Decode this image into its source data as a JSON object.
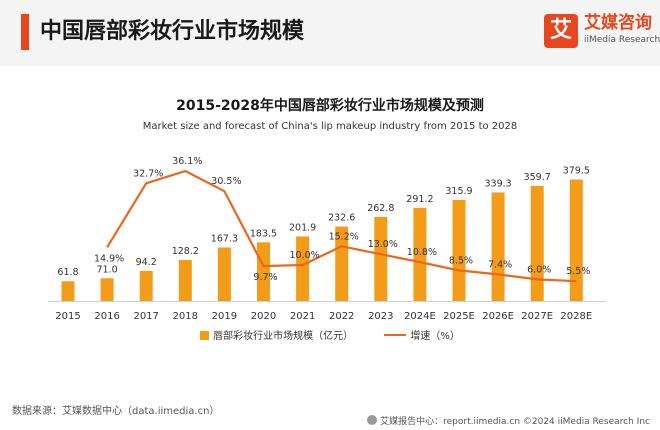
{
  "header": {
    "title": "中国唇部彩妆行业市场规模",
    "brand_mark": "艾",
    "brand_name": "艾媒咨询",
    "brand_sub": "iiMedia Research",
    "accent_color": "#e8461e"
  },
  "chart_data": {
    "type": "bar",
    "title": "2015-2028年中国唇部彩妆行业市场规模及预测",
    "subtitle": "Market size and forecast of China's lip makeup industry from 2015 to 2028",
    "categories": [
      "2015",
      "2016",
      "2017",
      "2018",
      "2019",
      "2020",
      "2021",
      "2022",
      "2023",
      "2024E",
      "2025E",
      "2026E",
      "2027E",
      "2028E"
    ],
    "series": [
      {
        "name": "唇部彩妆行业市场规模（亿元）",
        "type": "bar",
        "color": "#f39c1a",
        "values": [
          61.8,
          71.0,
          94.2,
          128.2,
          167.3,
          183.5,
          201.9,
          232.6,
          262.8,
          291.2,
          315.9,
          339.3,
          359.7,
          379.5
        ],
        "labels": [
          "61.8",
          "71.0",
          "94.2",
          "128.2",
          "167.3",
          "183.5",
          "201.9",
          "232.6",
          "262.8",
          "291.2",
          "315.9",
          "339.3",
          "359.7",
          "379.5"
        ]
      },
      {
        "name": "增速（%）",
        "type": "line",
        "color": "#e8681e",
        "values": [
          null,
          14.9,
          32.7,
          36.1,
          30.5,
          9.7,
          10.0,
          15.2,
          13.0,
          10.8,
          8.5,
          7.4,
          6.0,
          5.5
        ],
        "labels": [
          "",
          "14.9%",
          "32.7%",
          "36.1%",
          "30.5%",
          "9.7%",
          "10.0%",
          "15.2%",
          "13.0%",
          "10.8%",
          "8.5%",
          "7.4%",
          "6.0%",
          "5.5%"
        ]
      }
    ],
    "bar_ylim": [
      0,
      400
    ],
    "line_ylim": [
      0,
      40
    ],
    "grid": false,
    "legend": "bottom"
  },
  "footer": {
    "source": "数据来源：艾媒数据中心（data.iimedia.cn）",
    "report": "艾媒报告中心：report.iimedia.cn   ©2024  iiMedia Research  Inc"
  }
}
